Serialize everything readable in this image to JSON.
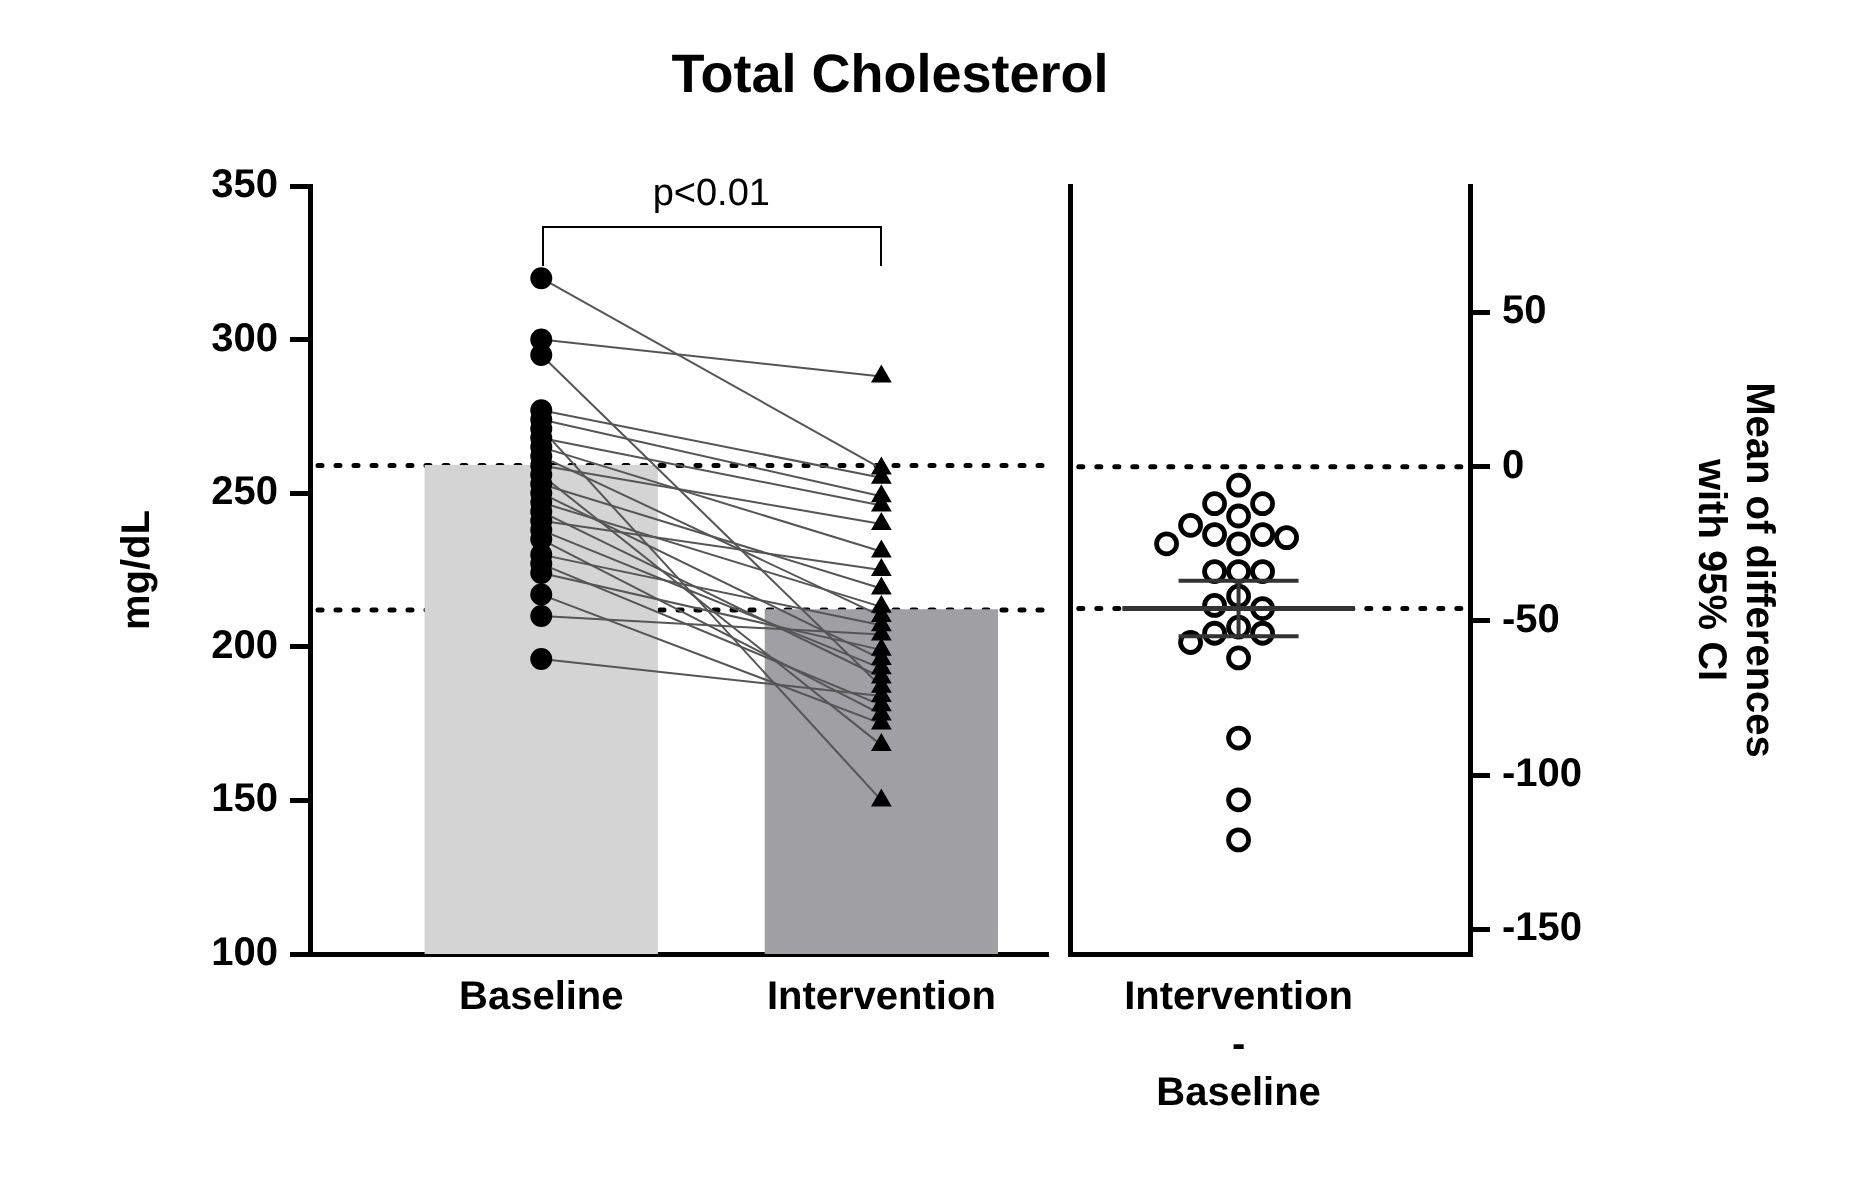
{
  "chart_data": [
    {
      "type": "scatter",
      "title": "Total Cholesterol",
      "ylabel": "mg/dL",
      "categories": [
        "Baseline",
        "Intervention"
      ],
      "ylim": [
        100,
        350
      ],
      "yticks": [
        100,
        150,
        200,
        250,
        300,
        350
      ],
      "grid": false,
      "legend": false,
      "annotations": [
        "p<0.01"
      ],
      "ref_lines": [
        {
          "axis": "y",
          "value": 259,
          "line_style": "dotted",
          "color": "#000000"
        },
        {
          "axis": "y",
          "value": 212,
          "line_style": "dotted",
          "color": "#000000"
        }
      ],
      "series": [
        {
          "type": "bar",
          "values": [
            259,
            212
          ],
          "colors": [
            "#d4d4d4",
            "#a0a0a4"
          ]
        },
        {
          "type": "line",
          "marker": "none",
          "color": "#555555",
          "x": [
            "Baseline",
            "Intervention"
          ],
          "values": [
            320,
            258
          ]
        },
        {
          "type": "line",
          "marker": "none",
          "color": "#555555",
          "x": [
            "Baseline",
            "Intervention"
          ],
          "values": [
            300,
            288
          ]
        },
        {
          "type": "line",
          "marker": "none",
          "color": "#555555",
          "x": [
            "Baseline",
            "Intervention"
          ],
          "values": [
            295,
            187
          ]
        },
        {
          "type": "line",
          "marker": "none",
          "color": "#555555",
          "x": [
            "Baseline",
            "Intervention"
          ],
          "values": [
            277,
            255
          ]
        },
        {
          "type": "line",
          "marker": "none",
          "color": "#555555",
          "x": [
            "Baseline",
            "Intervention"
          ],
          "values": [
            274,
            249
          ]
        },
        {
          "type": "line",
          "marker": "none",
          "color": "#555555",
          "x": [
            "Baseline",
            "Intervention"
          ],
          "values": [
            271,
            150
          ]
        },
        {
          "type": "line",
          "marker": "none",
          "color": "#555555",
          "x": [
            "Baseline",
            "Intervention"
          ],
          "values": [
            268,
            246
          ]
        },
        {
          "type": "line",
          "marker": "none",
          "color": "#555555",
          "x": [
            "Baseline",
            "Intervention"
          ],
          "values": [
            265,
            231
          ]
        },
        {
          "type": "line",
          "marker": "none",
          "color": "#555555",
          "x": [
            "Baseline",
            "Intervention"
          ],
          "values": [
            262,
            210
          ]
        },
        {
          "type": "line",
          "marker": "none",
          "color": "#555555",
          "x": [
            "Baseline",
            "Intervention"
          ],
          "values": [
            259,
            240
          ]
        },
        {
          "type": "line",
          "marker": "none",
          "color": "#555555",
          "x": [
            "Baseline",
            "Intervention"
          ],
          "values": [
            256,
            168
          ]
        },
        {
          "type": "line",
          "marker": "none",
          "color": "#555555",
          "x": [
            "Baseline",
            "Intervention"
          ],
          "values": [
            253,
            219
          ]
        },
        {
          "type": "line",
          "marker": "none",
          "color": "#555555",
          "x": [
            "Baseline",
            "Intervention"
          ],
          "values": [
            250,
            196
          ]
        },
        {
          "type": "line",
          "marker": "none",
          "color": "#555555",
          "x": [
            "Baseline",
            "Intervention"
          ],
          "values": [
            247,
            213
          ]
        },
        {
          "type": "line",
          "marker": "none",
          "color": "#555555",
          "x": [
            "Baseline",
            "Intervention"
          ],
          "values": [
            244,
            190
          ]
        },
        {
          "type": "line",
          "marker": "none",
          "color": "#555555",
          "x": [
            "Baseline",
            "Intervention"
          ],
          "values": [
            241,
            225
          ]
        },
        {
          "type": "line",
          "marker": "none",
          "color": "#555555",
          "x": [
            "Baseline",
            "Intervention"
          ],
          "values": [
            238,
            193
          ]
        },
        {
          "type": "line",
          "marker": "none",
          "color": "#555555",
          "x": [
            "Baseline",
            "Intervention"
          ],
          "values": [
            235,
            178
          ]
        },
        {
          "type": "line",
          "marker": "none",
          "color": "#555555",
          "x": [
            "Baseline",
            "Intervention"
          ],
          "values": [
            230,
            207
          ]
        },
        {
          "type": "line",
          "marker": "none",
          "color": "#555555",
          "x": [
            "Baseline",
            "Intervention"
          ],
          "values": [
            227,
            181
          ]
        },
        {
          "type": "line",
          "marker": "none",
          "color": "#555555",
          "x": [
            "Baseline",
            "Intervention"
          ],
          "values": [
            224,
            199
          ]
        },
        {
          "type": "line",
          "marker": "none",
          "color": "#555555",
          "x": [
            "Baseline",
            "Intervention"
          ],
          "values": [
            217,
            175
          ]
        },
        {
          "type": "line",
          "marker": "none",
          "color": "#555555",
          "x": [
            "Baseline",
            "Intervention"
          ],
          "values": [
            210,
            204
          ]
        },
        {
          "type": "line",
          "marker": "none",
          "color": "#555555",
          "x": [
            "Baseline",
            "Intervention"
          ],
          "values": [
            196,
            184
          ]
        },
        {
          "marker": "circle",
          "color": "#000000",
          "x": [
            "Baseline",
            "Baseline",
            "Baseline",
            "Baseline",
            "Baseline",
            "Baseline",
            "Baseline",
            "Baseline",
            "Baseline",
            "Baseline",
            "Baseline",
            "Baseline",
            "Baseline",
            "Baseline",
            "Baseline",
            "Baseline",
            "Baseline",
            "Baseline",
            "Baseline",
            "Baseline",
            "Baseline",
            "Baseline",
            "Baseline",
            "Baseline"
          ],
          "values": [
            320,
            300,
            295,
            277,
            274,
            271,
            268,
            265,
            262,
            259,
            256,
            253,
            250,
            247,
            244,
            241,
            238,
            235,
            230,
            227,
            224,
            217,
            210,
            196
          ]
        },
        {
          "marker": "triangle",
          "color": "#000000",
          "x": [
            "Intervention",
            "Intervention",
            "Intervention",
            "Intervention",
            "Intervention",
            "Intervention",
            "Intervention",
            "Intervention",
            "Intervention",
            "Intervention",
            "Intervention",
            "Intervention",
            "Intervention",
            "Intervention",
            "Intervention",
            "Intervention",
            "Intervention",
            "Intervention",
            "Intervention",
            "Intervention",
            "Intervention",
            "Intervention",
            "Intervention",
            "Intervention"
          ],
          "values": [
            258,
            288,
            187,
            255,
            249,
            150,
            246,
            231,
            210,
            240,
            168,
            219,
            196,
            213,
            190,
            225,
            193,
            178,
            207,
            181,
            199,
            175,
            204,
            184
          ]
        }
      ]
    },
    {
      "type": "scatter",
      "y2label": "Mean of differences\nwith 95% CI",
      "categories": [
        "Intervention\n-\nBaseline"
      ],
      "y2lim": [
        -158,
        91
      ],
      "y2ticks": [
        -150,
        -100,
        -50,
        0,
        50
      ],
      "grid": false,
      "legend": false,
      "ref_lines": [
        {
          "axis": "y2",
          "value": 0,
          "line_style": "dotted",
          "color": "#000000"
        },
        {
          "axis": "y2",
          "value": -46,
          "line_style": "dotted",
          "color": "#000000"
        }
      ],
      "series": [
        {
          "marker": "circle",
          "axis": "y2",
          "color": "#000000",
          "x": [
            "Intervention\n-\nBaseline",
            "Intervention\n-\nBaseline",
            "Intervention\n-\nBaseline",
            "Intervention\n-\nBaseline",
            "Intervention\n-\nBaseline",
            "Intervention\n-\nBaseline",
            "Intervention\n-\nBaseline",
            "Intervention\n-\nBaseline",
            "Intervention\n-\nBaseline",
            "Intervention\n-\nBaseline",
            "Intervention\n-\nBaseline",
            "Intervention\n-\nBaseline",
            "Intervention\n-\nBaseline",
            "Intervention\n-\nBaseline",
            "Intervention\n-\nBaseline",
            "Intervention\n-\nBaseline",
            "Intervention\n-\nBaseline",
            "Intervention\n-\nBaseline",
            "Intervention\n-\nBaseline",
            "Intervention\n-\nBaseline",
            "Intervention\n-\nBaseline",
            "Intervention\n-\nBaseline",
            "Intervention\n-\nBaseline",
            "Intervention\n-\nBaseline"
          ],
          "values": [
            -62,
            -12,
            -108,
            -22,
            -25,
            -121,
            -22,
            -34,
            -52,
            -19,
            -88,
            -34,
            -54,
            -34,
            -54,
            -16,
            -45,
            -57,
            -23,
            -46,
            -25,
            -42,
            -6,
            -12
          ]
        },
        {
          "type": "box",
          "axis": "y2",
          "color": "#333333",
          "boxes": [
            {
              "low": -55,
              "q1": -46,
              "median": -46,
              "q3": -46,
              "high": -37
            }
          ]
        }
      ]
    }
  ]
}
